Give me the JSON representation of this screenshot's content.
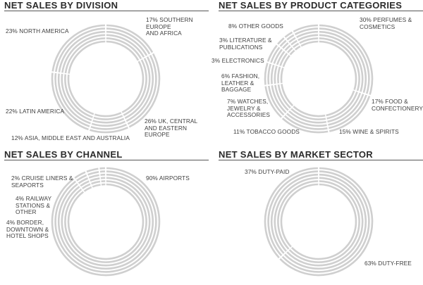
{
  "colors": {
    "ring": "#cfcfcf",
    "gap": "#ffffff",
    "text": "#404040",
    "title": "#2b2b2b"
  },
  "chart_data": [
    {
      "type": "pie",
      "title": "NET SALES BY DIVISION",
      "slices": [
        {
          "label": "17% SOUTHERN EUROPE\nAND AFRICA",
          "value": 17
        },
        {
          "label": "26% UK, CENTRAL\nAND EASTERN EUROPE",
          "value": 26
        },
        {
          "label": "12% ASIA, MIDDLE EAST AND AUSTRALIA",
          "value": 12
        },
        {
          "label": "22% LATIN AMERICA",
          "value": 22
        },
        {
          "label": "23% NORTH AMERICA",
          "value": 23
        }
      ]
    },
    {
      "type": "pie",
      "title": "NET SALES BY PRODUCT CATEGORIES",
      "slices": [
        {
          "label": "30% PERFUMES &\nCOSMETICS",
          "value": 30
        },
        {
          "label": "17% FOOD &\nCONFECTIONERY",
          "value": 17
        },
        {
          "label": "15% WINE & SPIRITS",
          "value": 15
        },
        {
          "label": "11% TOBACCO GOODS",
          "value": 11
        },
        {
          "label": "7% WATCHES,\nJEWELRY &\nACCESSORIES",
          "value": 7
        },
        {
          "label": "6% FASHION,\nLEATHER &\nBAGGAGE",
          "value": 6
        },
        {
          "label": "3% ELECTRONICS",
          "value": 3
        },
        {
          "label": "3% LITERATURE &\nPUBLICATIONS",
          "value": 3
        },
        {
          "label": "8% OTHER GOODS",
          "value": 8
        }
      ]
    },
    {
      "type": "pie",
      "title": "NET SALES BY CHANNEL",
      "slices": [
        {
          "label": "90% AIRPORTS",
          "value": 90
        },
        {
          "label": "4% BORDER,\nDOWNTOWN &\nHOTEL SHOPS",
          "value": 4
        },
        {
          "label": "4% RAILWAY\nSTATIONS &\nOTHER",
          "value": 4
        },
        {
          "label": "2% CRUISE LINERS &\nSEAPORTS",
          "value": 2
        }
      ]
    },
    {
      "type": "pie",
      "title": "NET SALES BY MARKET SECTOR",
      "slices": [
        {
          "label": "63% DUTY-FREE",
          "value": 63
        },
        {
          "label": "37% DUTY-PAID",
          "value": 37
        }
      ]
    }
  ]
}
